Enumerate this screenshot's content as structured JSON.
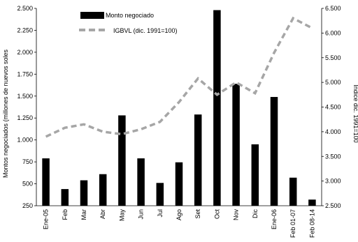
{
  "chart_data": {
    "type": "bar",
    "title": "",
    "categories": [
      "Ene-05",
      "Feb",
      "Mar",
      "Abr",
      "May",
      "Jun",
      "Jul",
      "Ago",
      "Set",
      "Oct",
      "Nov",
      "Dic",
      "Ene-06",
      "Feb 01-07",
      "Feb 08-14"
    ],
    "series": [
      {
        "name": "Monto negociado",
        "type": "bar",
        "axis": "left",
        "color": "#000000",
        "values": [
          790,
          440,
          540,
          610,
          1280,
          790,
          510,
          745,
          1290,
          2480,
          1640,
          950,
          1490,
          570,
          320
        ]
      },
      {
        "name": "IGBVL (dic. 1991=100)",
        "type": "line",
        "axis": "right",
        "color": "#a6a6a6",
        "style": "dashed",
        "values": [
          3900,
          4080,
          4150,
          4000,
          3950,
          4050,
          4200,
          4600,
          5080,
          4750,
          5000,
          4780,
          5600,
          6300,
          6100
        ]
      }
    ],
    "ylabel": "Montos negociados (millones de nuevos soles",
    "y2label": "Indice dic. 1991=100",
    "ylim": [
      250,
      2500
    ],
    "y2lim": [
      2500,
      6500
    ],
    "yticks": [
      "250",
      "500",
      "750",
      "1.000",
      "1.250",
      "1.500",
      "1.750",
      "2.000",
      "2.250",
      "2.500"
    ],
    "y2ticks": [
      "2.500",
      "3.000",
      "3.500",
      "4.000",
      "4.500",
      "5.000",
      "5.500",
      "6.000",
      "6.500"
    ],
    "legend_position": "top-left-center",
    "grid": false
  }
}
